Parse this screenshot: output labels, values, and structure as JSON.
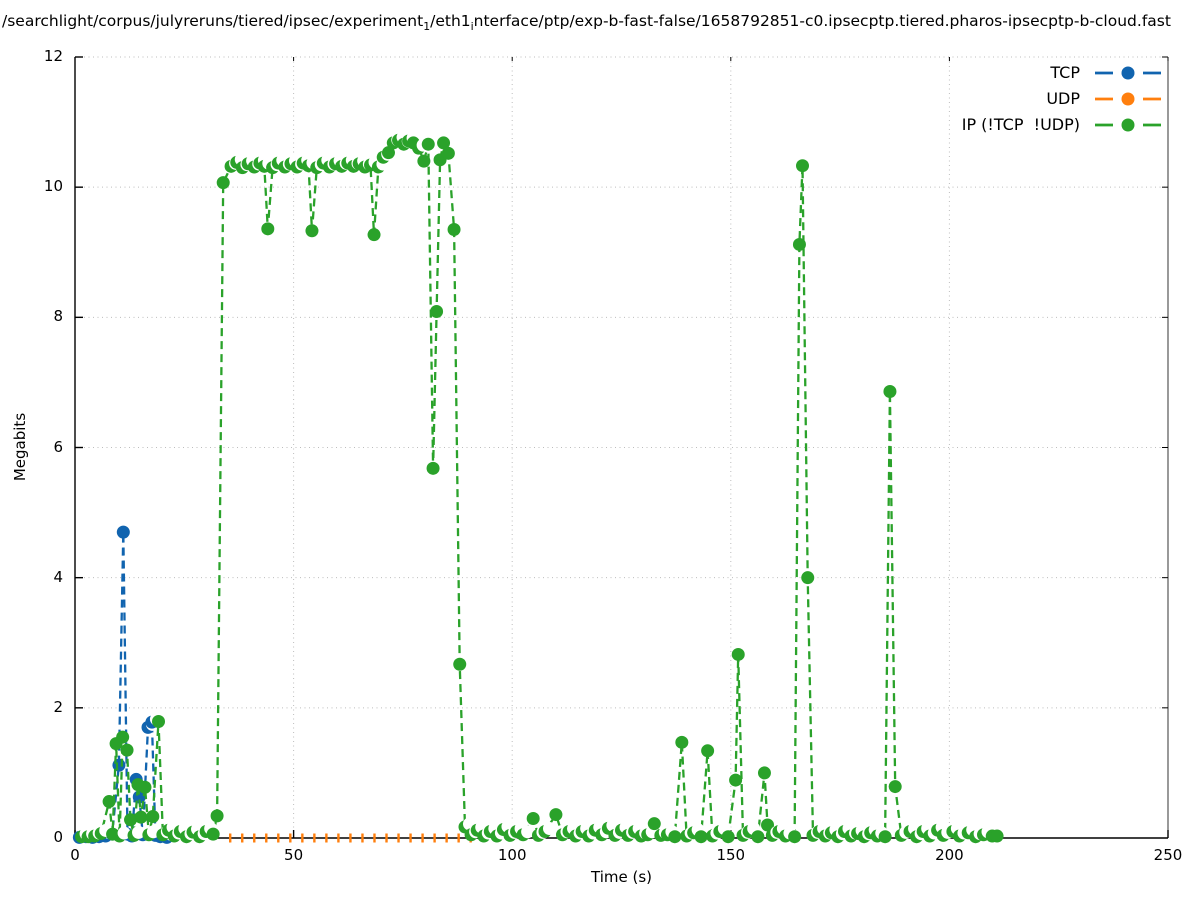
{
  "title": {
    "segments": [
      {
        "text": "/searchlight/corpus/julyreruns/tiered/ipsec/experiment"
      },
      {
        "text": "1",
        "sub": true
      },
      {
        "text": "/eth1"
      },
      {
        "text": "i",
        "sub": true
      },
      {
        "text": "nterface/ptp/exp-b-fast-false/1658792851-c0.ipsecptp.tiered.pharos-ipsecptp-b-cloud.fast"
      }
    ]
  },
  "axes": {
    "x_label": "Time (s)",
    "y_label": "Megabits",
    "x_ticks": [
      0,
      50,
      100,
      150,
      200,
      250
    ],
    "y_ticks": [
      0,
      2,
      4,
      6,
      8,
      10,
      12
    ],
    "xlim": [
      0,
      250
    ],
    "ylim": [
      0,
      12
    ]
  },
  "legend": {
    "entries": [
      {
        "label": "TCP",
        "color": "#1164af"
      },
      {
        "label": "UDP",
        "color": "#ff7f0e"
      },
      {
        "label": "IP (!TCP  !UDP)",
        "color": "#2aa22a"
      }
    ]
  },
  "chart_data": {
    "type": "line",
    "title": "/searchlight/corpus/julyreruns/tiered/ipsec/experiment_1/eth1_interface/ptp/exp-b-fast-false/1658792851-c0.ipsecptp.tiered.pharos-ipsecptp-b-cloud.fast",
    "xlabel": "Time (s)",
    "ylabel": "Megabits",
    "xlim": [
      0,
      250
    ],
    "ylim": [
      0,
      12
    ],
    "grid": true,
    "legend_position": "top-right",
    "marker": "filled-circle",
    "line_style": "dashed",
    "series": [
      {
        "name": "UDP",
        "color": "#ff7f0e",
        "marker": "axis-dash",
        "points": [
          [
            35.5,
            0
          ],
          [
            38.25,
            0
          ],
          [
            41,
            0
          ],
          [
            43.75,
            0
          ],
          [
            46.5,
            0
          ],
          [
            49.25,
            0
          ],
          [
            52,
            0
          ],
          [
            54.75,
            0
          ],
          [
            57.5,
            0
          ],
          [
            60.25,
            0
          ],
          [
            63,
            0
          ],
          [
            65.75,
            0
          ],
          [
            68.5,
            0
          ],
          [
            71.25,
            0
          ],
          [
            74,
            0
          ],
          [
            76.75,
            0
          ],
          [
            79.5,
            0
          ],
          [
            82.25,
            0
          ],
          [
            85,
            0
          ],
          [
            87.75,
            0
          ],
          [
            90.5,
            0
          ]
        ]
      },
      {
        "name": "TCP",
        "color": "#1164af",
        "points": [
          [
            1,
            0.01,
            1
          ],
          [
            2.5,
            0.02,
            1
          ],
          [
            4,
            0.01,
            1
          ],
          [
            5.5,
            0.02,
            1
          ],
          [
            7,
            0.03,
            1
          ],
          [
            8.5,
            0.06,
            1
          ],
          [
            10.05,
            1.12
          ],
          [
            11.05,
            4.7
          ],
          [
            12,
            0.06
          ],
          [
            13,
            0.03,
            1
          ],
          [
            14,
            0.9
          ],
          [
            14.7,
            0.63
          ],
          [
            15.5,
            0.05,
            1
          ],
          [
            16.7,
            1.7,
            1
          ],
          [
            17.6,
            1.78,
            1
          ],
          [
            18.4,
            0.04,
            1
          ],
          [
            19.5,
            0.02,
            1
          ],
          [
            21,
            0.01,
            1
          ]
        ]
      },
      {
        "name": "IP (!TCP  !UDP)",
        "color": "#2aa22a",
        "points": [
          [
            1.5,
            0.02,
            1
          ],
          [
            3,
            0.02,
            1
          ],
          [
            4.5,
            0.03,
            1
          ],
          [
            6,
            0.07,
            1
          ],
          [
            7.8,
            0.56
          ],
          [
            8.6,
            0.06
          ],
          [
            9.4,
            1.45
          ],
          [
            10.2,
            0.03,
            1
          ],
          [
            10.9,
            1.55
          ],
          [
            11.9,
            1.35
          ],
          [
            12.7,
            0.28
          ],
          [
            13.5,
            0.04,
            1
          ],
          [
            14.4,
            0.82
          ],
          [
            15.1,
            0.32
          ],
          [
            16,
            0.78
          ],
          [
            16.9,
            0.05,
            1
          ],
          [
            17.8,
            0.33
          ],
          [
            19.1,
            1.79
          ],
          [
            20.1,
            0.05,
            1
          ],
          [
            21.4,
            0.12,
            1
          ],
          [
            22.7,
            0.03,
            1
          ],
          [
            24.1,
            0.1,
            1
          ],
          [
            25.5,
            0.02,
            1
          ],
          [
            27,
            0.09,
            1
          ],
          [
            28.5,
            0.02,
            1
          ],
          [
            30,
            0.1,
            1
          ],
          [
            31.6,
            0.06
          ],
          [
            32.5,
            0.34
          ],
          [
            33.9,
            10.07
          ],
          [
            35.7,
            10.32,
            1
          ],
          [
            37,
            10.38,
            1
          ],
          [
            38.3,
            10.3,
            1
          ],
          [
            39.6,
            10.36,
            1
          ],
          [
            41,
            10.31,
            1
          ],
          [
            42.3,
            10.37,
            1
          ],
          [
            43.3,
            10.32,
            1
          ],
          [
            44.1,
            9.36
          ],
          [
            45.2,
            10.3,
            1
          ],
          [
            46.5,
            10.37,
            1
          ],
          [
            48,
            10.31,
            1
          ],
          [
            49.4,
            10.36,
            1
          ],
          [
            50.8,
            10.31,
            1
          ],
          [
            52.2,
            10.37,
            1
          ],
          [
            53.4,
            10.33,
            1
          ],
          [
            54.2,
            9.33
          ],
          [
            55.3,
            10.3,
            1
          ],
          [
            56.8,
            10.37,
            1
          ],
          [
            58.2,
            10.31,
            1
          ],
          [
            59.6,
            10.36,
            1
          ],
          [
            61,
            10.32,
            1
          ],
          [
            62.4,
            10.37,
            1
          ],
          [
            63.7,
            10.32,
            1
          ],
          [
            65,
            10.36,
            1
          ],
          [
            66.3,
            10.31,
            1
          ],
          [
            67.6,
            10.34,
            1
          ],
          [
            68.4,
            9.27
          ],
          [
            69.4,
            10.31,
            1
          ],
          [
            70.5,
            10.46,
            1
          ],
          [
            71.7,
            10.53
          ],
          [
            72.8,
            10.68,
            1
          ],
          [
            74,
            10.72,
            1
          ],
          [
            75.2,
            10.66,
            1
          ],
          [
            76.3,
            10.71,
            1
          ],
          [
            77.4,
            10.68
          ],
          [
            78.6,
            10.6,
            1
          ],
          [
            79.8,
            10.4
          ],
          [
            80.8,
            10.66
          ],
          [
            81.9,
            5.68
          ],
          [
            82.7,
            8.09
          ],
          [
            83.5,
            10.42
          ],
          [
            84.3,
            10.68
          ],
          [
            85.4,
            10.52
          ],
          [
            86.7,
            9.35
          ],
          [
            88,
            2.67
          ],
          [
            89.2,
            0.17,
            1
          ],
          [
            90.6,
            0.05,
            1
          ],
          [
            92,
            0.12,
            1
          ],
          [
            93.5,
            0.03,
            1
          ],
          [
            95,
            0.1,
            1
          ],
          [
            96.5,
            0.03,
            1
          ],
          [
            98,
            0.13,
            1
          ],
          [
            99.5,
            0.04,
            1
          ],
          [
            101,
            0.1,
            1
          ],
          [
            102.5,
            0.05,
            1
          ],
          [
            104.8,
            0.3
          ],
          [
            106,
            0.04,
            1
          ],
          [
            107.5,
            0.1,
            1
          ],
          [
            110,
            0.36
          ],
          [
            111.5,
            0.05,
            1
          ],
          [
            113,
            0.1,
            1
          ],
          [
            114.5,
            0.03,
            1
          ],
          [
            116,
            0.1,
            1
          ],
          [
            117.5,
            0.03,
            1
          ],
          [
            119,
            0.12,
            1
          ],
          [
            120.5,
            0.05,
            1
          ],
          [
            122,
            0.15,
            1
          ],
          [
            123.5,
            0.04,
            1
          ],
          [
            125,
            0.12,
            1
          ],
          [
            126.5,
            0.04,
            1
          ],
          [
            128,
            0.1,
            1
          ],
          [
            129.5,
            0.03,
            1
          ],
          [
            131,
            0.05,
            1
          ],
          [
            132.5,
            0.22
          ],
          [
            134,
            0.04,
            1
          ],
          [
            135.5,
            0.05,
            1
          ],
          [
            137.2,
            0.02
          ],
          [
            138.8,
            1.47
          ],
          [
            139.9,
            0.03,
            1
          ],
          [
            141.5,
            0.08,
            1
          ],
          [
            143.2,
            0.02
          ],
          [
            144.7,
            1.34
          ],
          [
            145.8,
            0.03,
            1
          ],
          [
            147.5,
            0.1,
            1
          ],
          [
            149.4,
            0.02
          ],
          [
            151.1,
            0.89
          ],
          [
            151.7,
            2.82
          ],
          [
            152.8,
            0.04,
            1
          ],
          [
            154.2,
            0.1,
            1
          ],
          [
            156.2,
            0.02
          ],
          [
            157.7,
            1.0
          ],
          [
            158.4,
            0.2
          ],
          [
            159.5,
            0.04,
            1
          ],
          [
            161,
            0.1,
            1
          ],
          [
            162.5,
            0.03,
            1
          ],
          [
            164.6,
            0.02
          ],
          [
            165.7,
            9.12
          ],
          [
            166.4,
            10.33
          ],
          [
            167.6,
            4.0
          ],
          [
            168.8,
            0.04,
            1
          ],
          [
            170.2,
            0.1,
            1
          ],
          [
            171.6,
            0.03,
            1
          ],
          [
            173,
            0.08,
            1
          ],
          [
            174.5,
            0.02,
            1
          ],
          [
            176,
            0.1,
            1
          ],
          [
            177.5,
            0.03,
            1
          ],
          [
            179,
            0.07,
            1
          ],
          [
            180.5,
            0.02,
            1
          ],
          [
            182,
            0.08,
            1
          ],
          [
            183.5,
            0.03,
            1
          ],
          [
            185.3,
            0.02
          ],
          [
            186.4,
            6.86
          ],
          [
            187.6,
            0.79
          ],
          [
            189,
            0.04,
            1
          ],
          [
            191,
            0.1,
            1
          ],
          [
            192.5,
            0.02,
            1
          ],
          [
            194,
            0.1,
            1
          ],
          [
            195.5,
            0.03,
            1
          ],
          [
            197.3,
            0.12,
            1
          ],
          [
            198.6,
            0.04,
            1
          ],
          [
            200.8,
            0.1,
            1
          ],
          [
            202.3,
            0.03,
            1
          ],
          [
            204.3,
            0.08,
            1
          ],
          [
            206,
            0.02,
            1
          ],
          [
            207.8,
            0.05,
            1
          ],
          [
            209.8,
            0.03
          ],
          [
            210.9,
            0.03
          ]
        ]
      }
    ]
  }
}
